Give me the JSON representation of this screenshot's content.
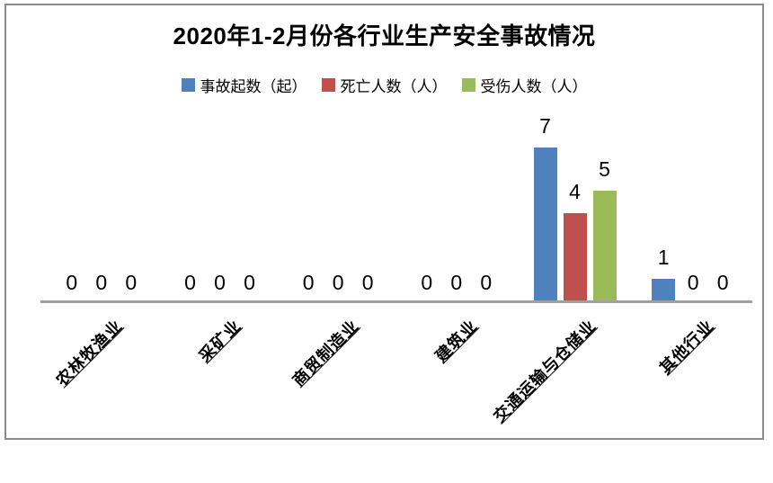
{
  "chart_data": {
    "type": "bar",
    "title": "2020年1-2月份各行业生产安全事故情况",
    "categories": [
      "农林牧渔业",
      "采矿业",
      "商贸制造业",
      "建筑业",
      "交通运输与仓储业",
      "其他行业"
    ],
    "series": [
      {
        "name": "事故起数（起）",
        "color": "#4F81BD",
        "values": [
          0,
          0,
          0,
          0,
          7,
          1
        ]
      },
      {
        "name": "死亡人数（人）",
        "color": "#C0504D",
        "values": [
          0,
          0,
          0,
          0,
          4,
          0
        ]
      },
      {
        "name": "受伤人数（人）",
        "color": "#9BBB59",
        "values": [
          0,
          0,
          0,
          0,
          5,
          0
        ]
      }
    ],
    "xlabel": "",
    "ylabel": "",
    "ylim": [
      0,
      7
    ],
    "legend_position": "top",
    "grid": "off",
    "data_labels": "shown",
    "axis_line_color": "#A0A0A0",
    "frame_border_color": "#8C8C8C",
    "text_color": "#000000",
    "background_color": "#FFFFFF"
  }
}
